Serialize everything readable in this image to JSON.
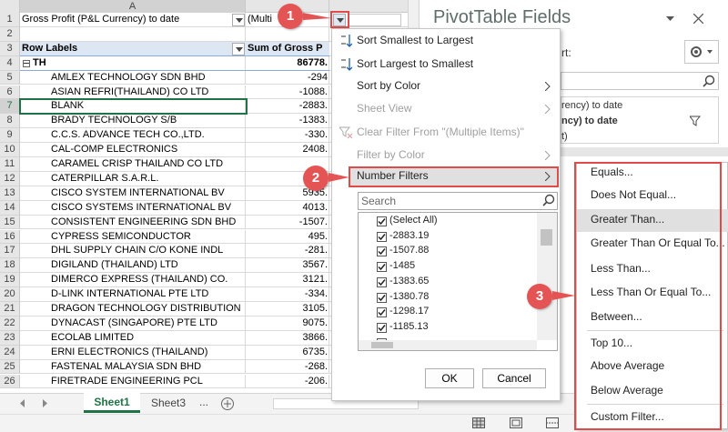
{
  "column_header": "A",
  "row_numbers": [
    1,
    2,
    3,
    4,
    5,
    6,
    7,
    8,
    9,
    10,
    11,
    12,
    13,
    14,
    15,
    16,
    17,
    18,
    19,
    20,
    21,
    22,
    23,
    24,
    25,
    26
  ],
  "filter_row": {
    "label": "Gross Profit (P&L Currency) to date",
    "value": "(Multi"
  },
  "pivot": {
    "header": {
      "label": "Row Labels",
      "value": "Sum of Gross P"
    },
    "group": {
      "label": "TH",
      "value": "86778."
    },
    "rows": [
      {
        "label": "AMLEX TECHNOLOGY SDN BHD",
        "value": "-294"
      },
      {
        "label": "ASIAN REFRI(THAILAND) CO LTD",
        "value": "-1088."
      },
      {
        "label": "BLANK",
        "value": "-2883."
      },
      {
        "label": "BRADY TECHNOLOGY S/B",
        "value": "-1383."
      },
      {
        "label": "C.C.S. ADVANCE TECH CO.,LTD.",
        "value": "-330."
      },
      {
        "label": "CAL-COMP ELECTRONICS",
        "value": "2408."
      },
      {
        "label": "CARAMEL CRISP THAILAND CO LTD"
      },
      {
        "label": "CATERPILLAR S.A.R.L."
      },
      {
        "label": "CISCO SYSTEM INTERNATIONAL BV",
        "value": "5935."
      },
      {
        "label": "CISCO SYSTEMS INTERNATIONAL BV",
        "value": "4013."
      },
      {
        "label": "CONSISTENT ENGINEERING SDN BHD",
        "value": "-1507."
      },
      {
        "label": "CYPRESS SEMICONDUCTOR",
        "value": "495."
      },
      {
        "label": "DHL SUPPLY CHAIN C/O KONE INDL",
        "value": "-281."
      },
      {
        "label": "DIGILAND (THAILAND) LTD",
        "value": "3567."
      },
      {
        "label": "DIMERCO EXPRESS (THAILAND) CO.",
        "value": "3121."
      },
      {
        "label": "D-LINK INTERNATIONAL PTE LTD",
        "value": "-334."
      },
      {
        "label": "DRAGON TECHNOLOGY DISTRIBUTION",
        "value": "3105."
      },
      {
        "label": "DYNACAST (SINGAPORE) PTE LTD",
        "value": "9075."
      },
      {
        "label": "ECOLAB LIMITED",
        "value": "3866."
      },
      {
        "label": "ERNI ELECTRONICS (THAILAND)",
        "value": "6735."
      },
      {
        "label": "FASTENAL MALAYSIA SDN BHD",
        "value": "-268."
      },
      {
        "label": "FIRETRADE ENGINEERING PCL",
        "value": "-206."
      }
    ]
  },
  "menu": {
    "items": [
      {
        "text": "Sort Smallest to Largest"
      },
      {
        "text": "Sort Largest to Smallest"
      },
      {
        "text": "Sort by Color",
        "submenu": true
      },
      {
        "text": "Sheet View",
        "disabled": true,
        "submenu": true
      },
      {
        "text": "Clear Filter From \"(Multiple Items)\"",
        "disabled": true
      },
      {
        "text": "Filter by Color",
        "disabled": true,
        "submenu": true
      },
      {
        "text": "Number Filters",
        "submenu": true,
        "highlighted": true
      }
    ],
    "search_placeholder": "Search",
    "list": [
      "(Select All)",
      "-2883.19",
      "-1507.88",
      "-1485",
      "-1383.65",
      "-1380.78",
      "-1298.17",
      "-1185.13"
    ],
    "ok": "OK",
    "cancel": "Cancel"
  },
  "submenu": [
    {
      "text": "Equals..."
    },
    {
      "text": "Does Not Equal..."
    },
    {
      "text": "Greater Than...",
      "highlighted": true
    },
    {
      "text": "Greater Than Or Equal To..."
    },
    {
      "text": "Less Than..."
    },
    {
      "text": "Less Than Or Equal To..."
    },
    {
      "text": "Between..."
    },
    {
      "text": "Top 10...",
      "separator_before": true
    },
    {
      "text": "Above Average"
    },
    {
      "text": "Below Average"
    },
    {
      "text": "Custom Filter...",
      "separator_before": true
    }
  ],
  "pane": {
    "title": "PivotTable Fields",
    "choose_label": "rt:",
    "field_lines": [
      "rency) to date",
      "ncy) to date",
      "t)"
    ]
  },
  "sheet_tabs": [
    "Sheet1",
    "Sheet3",
    "..."
  ],
  "callouts": [
    "1",
    "2",
    "3"
  ]
}
